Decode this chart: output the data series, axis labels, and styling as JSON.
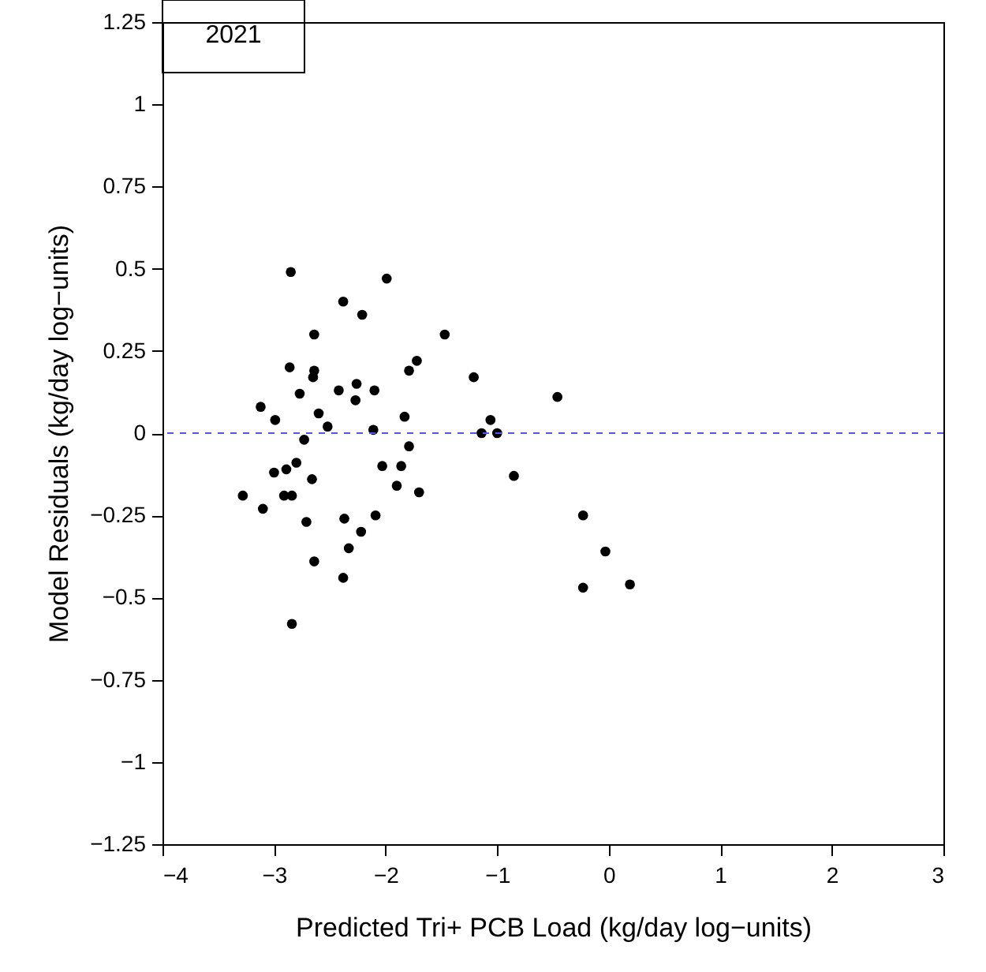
{
  "chart_data": {
    "type": "scatter",
    "xlabel": "Predicted Tri+ PCB Load (kg/day log−units)",
    "ylabel": "Model Residuals (kg/day log−units)",
    "annotations": [
      "2021"
    ],
    "marker": "circle",
    "grid": false,
    "xlim": [
      -4,
      3
    ],
    "xticks": [
      {
        "value": -4,
        "label": "−4"
      },
      {
        "value": -3,
        "label": "−3"
      },
      {
        "value": -2,
        "label": "−2"
      },
      {
        "value": -1,
        "label": "−1"
      },
      0,
      1,
      2,
      3
    ],
    "ylim": [
      -1.25,
      1.25
    ],
    "yticks": [
      {
        "value": -1.25,
        "label": "−1.25"
      },
      {
        "value": -1,
        "label": "−1"
      },
      {
        "value": -0.75,
        "label": "−0.75"
      },
      {
        "value": -0.5,
        "label": "−0.5"
      },
      {
        "value": -0.25,
        "label": "−0.25"
      },
      0,
      0.25,
      0.5,
      0.75,
      1,
      1.25
    ],
    "ref_lines": [
      {
        "axis": "y",
        "value": 0,
        "color": "#5555ee",
        "line_style": "dashed"
      }
    ],
    "series": [
      {
        "color": "#000000",
        "x": [
          -2.85,
          -1.99,
          -2.38,
          -2.21,
          -2.64,
          -1.47,
          -2.86,
          -2.64,
          -2.65,
          -1.72,
          -1.79,
          -1.21,
          -2.26,
          -2.42,
          -2.27,
          -2.1,
          -3.12,
          -2.77,
          -2.99,
          -2.6,
          -2.52,
          -0.46,
          -1.83,
          -1.06,
          -2.11,
          -1.14,
          -1.0,
          -2.73,
          -1.79,
          -2.8,
          -2.03,
          -1.86,
          -3.0,
          -2.89,
          -2.66,
          -1.9,
          -1.7,
          -0.85,
          -3.28,
          -2.91,
          -2.84,
          -3.1,
          -2.71,
          -2.37,
          -2.09,
          -2.22,
          -2.33,
          -0.23,
          -2.64,
          -2.38,
          -0.03,
          -0.23,
          0.19,
          -2.84
        ],
        "values": [
          0.49,
          0.47,
          0.4,
          0.36,
          0.3,
          0.3,
          0.2,
          0.19,
          0.17,
          0.22,
          0.19,
          0.17,
          0.15,
          0.13,
          0.1,
          0.13,
          0.08,
          0.12,
          0.04,
          0.06,
          0.02,
          0.11,
          0.05,
          0.04,
          0.01,
          0.0,
          0.0,
          -0.02,
          -0.04,
          -0.09,
          -0.1,
          -0.1,
          -0.12,
          -0.11,
          -0.14,
          -0.16,
          -0.18,
          -0.13,
          -0.19,
          -0.19,
          -0.19,
          -0.23,
          -0.27,
          -0.26,
          -0.25,
          -0.3,
          -0.35,
          -0.25,
          -0.39,
          -0.44,
          -0.36,
          -0.47,
          -0.46,
          -0.58
        ]
      }
    ]
  }
}
